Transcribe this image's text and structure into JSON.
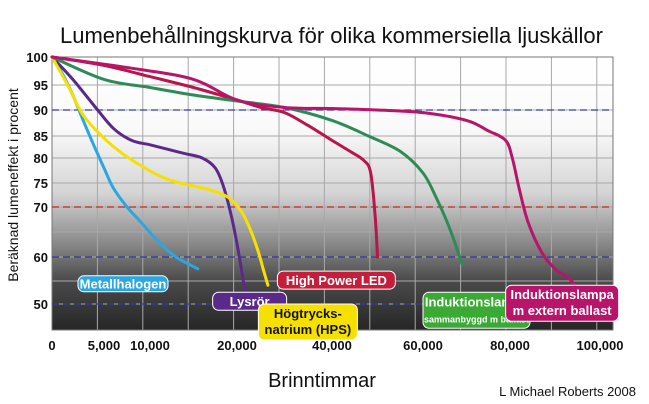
{
  "chart_data": {
    "type": "line",
    "title": "Lumenbehållningskurva för olika kommersiella ljuskällor",
    "xlabel": "Brinntimmar",
    "ylabel": "Beräknad lumeneffekt i procent",
    "credit": "L Michael Roberts 2008",
    "xlim": [
      0,
      100000
    ],
    "ylim": [
      47,
      100
    ],
    "x_ticks": [
      {
        "v": 0,
        "label": "0"
      },
      {
        "v": 5000,
        "label": "5,000"
      },
      {
        "v": 10000,
        "label": "10,000"
      },
      {
        "v": 20000,
        "label": "20,000"
      },
      {
        "v": 40000,
        "label": "40,000"
      },
      {
        "v": 60000,
        "label": "60,000"
      },
      {
        "v": 80000,
        "label": "80,000"
      },
      {
        "v": 100000,
        "label": "100,000"
      }
    ],
    "y_ticks": [
      {
        "v": 100,
        "label": "100"
      },
      {
        "v": 95,
        "label": "95"
      },
      {
        "v": 90,
        "label": "90"
      },
      {
        "v": 85,
        "label": "85"
      },
      {
        "v": 80,
        "label": "80"
      },
      {
        "v": 75,
        "label": "75"
      },
      {
        "v": 70,
        "label": "70"
      },
      {
        "v": 60,
        "label": "60"
      },
      {
        "v": 50,
        "label": "50"
      }
    ],
    "ref_lines": [
      {
        "y": 90,
        "color": "#3a3aa0"
      },
      {
        "y": 70,
        "color": "#cc2222"
      },
      {
        "y": 60,
        "color": "#3a3aa0"
      },
      {
        "y": 50,
        "color": "#3a3aa0"
      }
    ],
    "series": [
      {
        "name": "Metallhalogen",
        "color": "#2aa7e0",
        "label": {
          "lines": [
            "Metallhalogen"
          ],
          "bg": "#2aa7e0",
          "fg": "#ffffff",
          "anchor": [
            2500,
            56
          ],
          "w": 90,
          "h": 16
        },
        "points": [
          [
            0,
            100
          ],
          [
            1000,
            97
          ],
          [
            2000,
            93
          ],
          [
            3000,
            88
          ],
          [
            4000,
            83
          ],
          [
            5000,
            78
          ],
          [
            6000,
            74
          ],
          [
            7500,
            70
          ],
          [
            9000,
            67
          ],
          [
            11000,
            63
          ],
          [
            13000,
            60
          ],
          [
            15500,
            57.5
          ]
        ]
      },
      {
        "name": "Lysrör",
        "color": "#5a2a8a",
        "label": {
          "lines": [
            "Lysrör"
          ],
          "bg": "#5a2a8a",
          "fg": "#ffffff",
          "anchor": [
            17200,
            52.5
          ],
          "w": 74,
          "h": 18
        },
        "points": [
          [
            0,
            100
          ],
          [
            2000,
            96
          ],
          [
            4000,
            91
          ],
          [
            6000,
            86.5
          ],
          [
            8000,
            84
          ],
          [
            10000,
            83
          ],
          [
            12000,
            82
          ],
          [
            14000,
            81
          ],
          [
            16000,
            80
          ],
          [
            17500,
            78
          ],
          [
            18500,
            74
          ],
          [
            19500,
            67
          ],
          [
            20500,
            60
          ],
          [
            21500,
            54
          ],
          [
            22500,
            51
          ]
        ]
      },
      {
        "name": "Högtrycks-natrium (HPS)",
        "color": "#f5e000",
        "label": {
          "lines": [
            "Högtrycks-",
            "natrium (HPS)"
          ],
          "bg": "#f5e000",
          "fg": "#111111",
          "anchor": [
            24500,
            50
          ],
          "w": 99,
          "h": 36
        },
        "points": [
          [
            0,
            100
          ],
          [
            1500,
            95
          ],
          [
            3000,
            89
          ],
          [
            5000,
            84.5
          ],
          [
            7000,
            81
          ],
          [
            9000,
            78.5
          ],
          [
            11000,
            76.5
          ],
          [
            13000,
            75.2
          ],
          [
            15000,
            74.4
          ],
          [
            17000,
            73.5
          ],
          [
            19000,
            72
          ],
          [
            21000,
            69
          ],
          [
            23000,
            65
          ],
          [
            24500,
            61
          ],
          [
            25500,
            57.5
          ],
          [
            26500,
            54
          ]
        ]
      },
      {
        "name": "High Power LED",
        "color": "#b8154a",
        "label": {
          "lines": [
            "High Power LED"
          ],
          "bg": "#c41e3a",
          "fg": "#ffffff",
          "anchor": [
            28500,
            57
          ],
          "w": 118,
          "h": 18
        },
        "points": [
          [
            0,
            100
          ],
          [
            5000,
            98.5
          ],
          [
            10000,
            96.5
          ],
          [
            15000,
            94.5
          ],
          [
            20000,
            92
          ],
          [
            25000,
            90.5
          ],
          [
            30000,
            89.5
          ],
          [
            35000,
            87
          ],
          [
            40000,
            84
          ],
          [
            44000,
            81.5
          ],
          [
            47000,
            79.5
          ],
          [
            48500,
            77
          ],
          [
            49500,
            68
          ],
          [
            50000,
            60
          ]
        ]
      },
      {
        "name": "Induktionslampa sammanbyggd m ballast",
        "color": "#2e8b57",
        "label": {
          "lines": [
            "Induktionslampa",
            "sammanbyggd m ballast"
          ],
          "bg": "#3aaa35",
          "fg": "#ffffff",
          "sizes": [
            13,
            9
          ],
          "anchor": [
            60000,
            52.5
          ],
          "w": 107,
          "h": 36
        },
        "points": [
          [
            0,
            100
          ],
          [
            5000,
            96
          ],
          [
            10000,
            94.5
          ],
          [
            15000,
            93
          ],
          [
            20000,
            91.8
          ],
          [
            30000,
            90.5
          ],
          [
            40000,
            88
          ],
          [
            48000,
            85
          ],
          [
            55000,
            81.5
          ],
          [
            60000,
            77
          ],
          [
            63000,
            72
          ],
          [
            66000,
            66
          ],
          [
            69000,
            58.5
          ]
        ]
      },
      {
        "name": "Induktionslampa m extern ballast",
        "color": "#b8156a",
        "label": {
          "lines": [
            "Induktionslampa",
            "m extern ballast"
          ],
          "bg": "#b8156a",
          "fg": "#ffffff",
          "anchor": [
            79000,
            54
          ],
          "w": 113,
          "h": 36
        },
        "points": [
          [
            0,
            100
          ],
          [
            8000,
            98
          ],
          [
            15000,
            96
          ],
          [
            20000,
            92
          ],
          [
            30000,
            90.5
          ],
          [
            40000,
            90.3
          ],
          [
            50000,
            90
          ],
          [
            60000,
            89.5
          ],
          [
            70000,
            88
          ],
          [
            75000,
            86
          ],
          [
            79000,
            84
          ],
          [
            80500,
            80
          ],
          [
            82000,
            74
          ],
          [
            84000,
            67
          ],
          [
            87000,
            61
          ],
          [
            90000,
            57.5
          ],
          [
            93000,
            55.5
          ],
          [
            94500,
            54
          ]
        ]
      }
    ]
  }
}
